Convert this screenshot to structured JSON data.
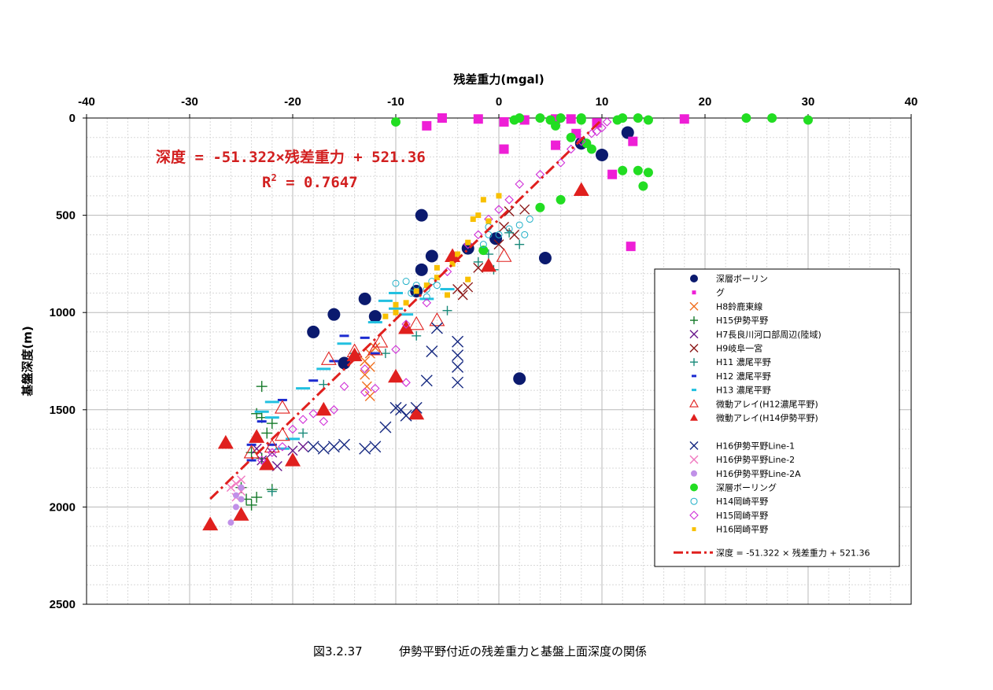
{
  "caption": {
    "number": "図3.2.37",
    "text": "伊勢平野付近の残差重力と基盤上面深度の関係"
  },
  "chart_data": {
    "type": "scatter",
    "title": "",
    "xlabel": "残差重力(mgal)",
    "ylabel": "基盤深度(m)",
    "x_axis_position": "top",
    "y_axis_inverted": true,
    "xlim": [
      -40,
      40
    ],
    "ylim": [
      0,
      2500
    ],
    "x_ticks": [
      -40,
      -30,
      -20,
      -10,
      0,
      10,
      20,
      30,
      40
    ],
    "y_ticks": [
      0,
      500,
      1000,
      1500,
      2000,
      2500
    ],
    "x_tick_labels": [
      "-40",
      "-30",
      "-20",
      "-10",
      "0",
      "10",
      "20",
      "30",
      "40"
    ],
    "y_tick_labels": [
      "0",
      "500",
      "1000",
      "1500",
      "2000",
      "2500"
    ],
    "grid": true,
    "legend_position": "right",
    "regression": {
      "label": "深度 = -51.322 × 残差重力 + 521.36",
      "equation_line1": "深度 = -51.322×残差重力 + 521.36",
      "r2_prefix": "R",
      "r2_sup": "2",
      "r2_suffix": " = 0.7647",
      "slope": -51.322,
      "intercept": 521.36,
      "x_range": [
        -28,
        10
      ],
      "color": "#e0201e"
    },
    "series": [
      {
        "name": "深層ボーリン",
        "marker": "circle",
        "color": "#0b1a6e",
        "size": 8,
        "points": [
          [
            -7.5,
            500
          ],
          [
            -6.5,
            710
          ],
          [
            -7.5,
            780
          ],
          [
            -8,
            890
          ],
          [
            -13,
            930
          ],
          [
            -12,
            1020
          ],
          [
            -16,
            1010
          ],
          [
            -18,
            1100
          ],
          [
            -15,
            1260
          ],
          [
            -3,
            670
          ],
          [
            -0.3,
            620
          ],
          [
            4.5,
            720
          ],
          [
            2,
            1340
          ],
          [
            10,
            190
          ],
          [
            8,
            130
          ],
          [
            12.5,
            75
          ]
        ]
      },
      {
        "name": "グ",
        "marker": "square",
        "color": "#ee1fd6",
        "size": 12,
        "points": [
          [
            -7,
            40
          ],
          [
            -5.5,
            0
          ],
          [
            -2,
            5
          ],
          [
            0.5,
            20
          ],
          [
            2.5,
            10
          ],
          [
            0.5,
            160
          ],
          [
            5.5,
            5
          ],
          [
            7,
            5
          ],
          [
            7.5,
            80
          ],
          [
            9.5,
            25
          ],
          [
            5.5,
            140
          ],
          [
            11,
            290
          ],
          [
            13,
            120
          ],
          [
            18,
            5
          ],
          [
            12.8,
            660
          ]
        ]
      },
      {
        "name": "H8鈴鹿東線",
        "marker": "x",
        "color": "#f07020",
        "size": 6,
        "points": [
          [
            -13,
            1250
          ],
          [
            -12.5,
            1280
          ],
          [
            -13,
            1320
          ],
          [
            -12.8,
            1380
          ],
          [
            -12.5,
            1430
          ],
          [
            -12,
            1180
          ],
          [
            -12.5,
            1210
          ]
        ]
      },
      {
        "name": "H15伊勢平野",
        "marker": "plus",
        "color": "#167a2a",
        "size": 7,
        "points": [
          [
            -23,
            1380
          ],
          [
            -23.5,
            1520
          ],
          [
            -23,
            1540
          ],
          [
            -22,
            1570
          ],
          [
            -22.5,
            1620
          ],
          [
            -24,
            1720
          ],
          [
            -23,
            1750
          ],
          [
            -25,
            1900
          ],
          [
            -24.5,
            1960
          ],
          [
            -24,
            1990
          ],
          [
            -23.5,
            1950
          ],
          [
            -22,
            1910
          ]
        ]
      },
      {
        "name": "H7長良川河口部周辺(陸域)",
        "marker": "x",
        "color": "#6a1a8c",
        "size": 6,
        "points": [
          [
            -23.5,
            1700
          ],
          [
            -21.5,
            1790
          ],
          [
            -20,
            1710
          ],
          [
            -19,
            1690
          ],
          [
            -23,
            1760
          ],
          [
            -22,
            1720
          ]
        ]
      },
      {
        "name": "H9岐阜一宮",
        "marker": "x",
        "color": "#8c1818",
        "size": 6,
        "points": [
          [
            1,
            480
          ],
          [
            2.5,
            470
          ],
          [
            1.5,
            600
          ],
          [
            0,
            650
          ],
          [
            -2,
            770
          ],
          [
            -4,
            880
          ],
          [
            -3.5,
            910
          ],
          [
            -3,
            870
          ],
          [
            0.5,
            560
          ]
        ]
      },
      {
        "name": "H11 濃尾平野",
        "marker": "plus",
        "color": "#1a8a7a",
        "size": 6,
        "points": [
          [
            2,
            650
          ],
          [
            1,
            590
          ],
          [
            -0.5,
            780
          ],
          [
            -1,
            700
          ],
          [
            -5,
            990
          ],
          [
            -8,
            1120
          ],
          [
            -11,
            1210
          ],
          [
            -14,
            1210
          ],
          [
            -17,
            1370
          ],
          [
            -19,
            1620
          ],
          [
            -22,
            1920
          ],
          [
            -2,
            740
          ]
        ]
      },
      {
        "name": "H12 濃尾平野",
        "marker": "dash",
        "color": "#1c2bd0",
        "size": 6,
        "points": [
          [
            -15,
            1120
          ],
          [
            -13,
            1130
          ],
          [
            -12,
            1210
          ],
          [
            -16,
            1250
          ],
          [
            -18,
            1350
          ],
          [
            -21,
            1450
          ],
          [
            -23,
            1560
          ],
          [
            -24,
            1680
          ],
          [
            -22,
            1680
          ],
          [
            -24,
            1760
          ]
        ]
      },
      {
        "name": "H13 濃尾平野",
        "marker": "dash",
        "color": "#22c0e0",
        "size": 9,
        "points": [
          [
            -10,
            900
          ],
          [
            -11,
            940
          ],
          [
            -10,
            980
          ],
          [
            -12,
            1050
          ],
          [
            -15,
            1160
          ],
          [
            -17,
            1290
          ],
          [
            -19,
            1390
          ],
          [
            -22,
            1460
          ],
          [
            -23,
            1510
          ],
          [
            -22,
            1540
          ],
          [
            -20,
            1650
          ],
          [
            -21,
            1700
          ],
          [
            -9,
            1010
          ],
          [
            -7,
            930
          ],
          [
            -5,
            880
          ]
        ]
      },
      {
        "name": "微動アレイ(H12濃尾平野)",
        "marker": "triangle-open",
        "color": "#e0201e",
        "size": 9,
        "points": [
          [
            -8,
            1060
          ],
          [
            -6,
            1040
          ],
          [
            -16.5,
            1240
          ],
          [
            -14,
            1200
          ],
          [
            -12,
            1190
          ],
          [
            -11.5,
            1150
          ],
          [
            -21,
            1490
          ],
          [
            -21,
            1630
          ],
          [
            -24,
            1720
          ],
          [
            0.5,
            710
          ],
          [
            -22,
            1690
          ]
        ]
      },
      {
        "name": "微動アレイ(H14伊勢平野)",
        "marker": "triangle",
        "color": "#e0201e",
        "size": 10,
        "points": [
          [
            -4.5,
            710
          ],
          [
            -1,
            760
          ],
          [
            -9,
            1080
          ],
          [
            -10,
            1330
          ],
          [
            -14,
            1220
          ],
          [
            -17,
            1500
          ],
          [
            -23.5,
            1640
          ],
          [
            -22.5,
            1780
          ],
          [
            -20,
            1760
          ],
          [
            -26.5,
            1670
          ],
          [
            -28,
            2090
          ],
          [
            -25,
            2040
          ],
          [
            -8,
            1520
          ],
          [
            8,
            370
          ]
        ]
      },
      {
        "name": "",
        "marker": "none",
        "color": "#ffffff",
        "size": 0,
        "points": []
      },
      {
        "name": "H16伊勢平野Line-1",
        "marker": "x",
        "color": "#152880",
        "size": 7,
        "points": [
          [
            -4,
            1150
          ],
          [
            -4,
            1220
          ],
          [
            -4,
            1280
          ],
          [
            -4,
            1360
          ],
          [
            -6.5,
            1200
          ],
          [
            -7,
            1350
          ],
          [
            -8,
            1490
          ],
          [
            -9,
            1530
          ],
          [
            -9.5,
            1500
          ],
          [
            -10,
            1490
          ],
          [
            -11,
            1590
          ],
          [
            -12,
            1690
          ],
          [
            -13,
            1700
          ],
          [
            -15,
            1680
          ],
          [
            -16,
            1690
          ],
          [
            -17,
            1700
          ],
          [
            -18,
            1690
          ],
          [
            -6,
            1080
          ]
        ]
      },
      {
        "name": "H16伊勢平野Line-2",
        "marker": "x",
        "color": "#f078c0",
        "size": 5,
        "points": [
          [
            -25.5,
            1880
          ],
          [
            -25,
            1920
          ],
          [
            -25.5,
            1950
          ],
          [
            -26,
            1900
          ],
          [
            -25,
            1860
          ]
        ]
      },
      {
        "name": "H16伊勢平野Line-2A",
        "marker": "circle",
        "color": "#c090e8",
        "size": 4,
        "points": [
          [
            -25.5,
            1940
          ],
          [
            -26,
            2080
          ],
          [
            -25,
            1900
          ],
          [
            -25.5,
            2000
          ],
          [
            -25,
            1960
          ]
        ]
      },
      {
        "name": "深層ボーリング",
        "marker": "circle",
        "color": "#22dd22",
        "size": 6,
        "points": [
          [
            -10,
            20
          ],
          [
            1.5,
            10
          ],
          [
            2,
            0
          ],
          [
            4,
            0
          ],
          [
            5,
            10
          ],
          [
            6,
            0
          ],
          [
            8,
            0
          ],
          [
            12,
            0
          ],
          [
            13.5,
            0
          ],
          [
            14.5,
            10
          ],
          [
            24,
            0
          ],
          [
            26.5,
            0
          ],
          [
            30,
            10
          ],
          [
            7,
            100
          ],
          [
            8.5,
            130
          ],
          [
            9,
            160
          ],
          [
            12,
            270
          ],
          [
            13.5,
            270
          ],
          [
            14.5,
            280
          ],
          [
            14,
            350
          ],
          [
            4,
            460
          ],
          [
            6,
            420
          ],
          [
            -1.5,
            680
          ],
          [
            11.5,
            10
          ],
          [
            8,
            10
          ],
          [
            5.5,
            40
          ]
        ]
      },
      {
        "name": "H14岡崎平野",
        "marker": "circle-open",
        "color": "#20b0c8",
        "size": 4,
        "points": [
          [
            3,
            520
          ],
          [
            2,
            550
          ],
          [
            1,
            570
          ],
          [
            -1,
            560
          ],
          [
            -9,
            840
          ],
          [
            -8,
            860
          ],
          [
            -7,
            880
          ],
          [
            -8.5,
            900
          ],
          [
            -7,
            920
          ],
          [
            -6,
            860
          ],
          [
            -6.5,
            840
          ],
          [
            -10,
            850
          ],
          [
            -1,
            600
          ],
          [
            -1.5,
            650
          ],
          [
            0,
            600
          ],
          [
            2.5,
            600
          ]
        ]
      },
      {
        "name": "H15岡崎平野",
        "marker": "diamond-open",
        "color": "#d030d8",
        "size": 5,
        "points": [
          [
            -2,
            600
          ],
          [
            -3,
            650
          ],
          [
            -1,
            520
          ],
          [
            0,
            470
          ],
          [
            1,
            420
          ],
          [
            2,
            340
          ],
          [
            4,
            290
          ],
          [
            6,
            230
          ],
          [
            7,
            160
          ],
          [
            8,
            120
          ],
          [
            9,
            80
          ],
          [
            10,
            50
          ],
          [
            10.5,
            20
          ],
          [
            -5,
            790
          ],
          [
            -7,
            950
          ],
          [
            -9,
            1060
          ],
          [
            -10,
            1190
          ],
          [
            -13,
            1290
          ],
          [
            -13,
            1410
          ],
          [
            -12,
            1390
          ],
          [
            -15,
            1380
          ],
          [
            -16,
            1500
          ],
          [
            -17,
            1560
          ],
          [
            -18,
            1520
          ],
          [
            -19,
            1550
          ],
          [
            -20,
            1600
          ],
          [
            -21,
            1690
          ],
          [
            -22,
            1720
          ],
          [
            -23,
            1760
          ],
          [
            -9,
            1360
          ],
          [
            9.5,
            70
          ]
        ]
      },
      {
        "name": "H16岡崎平野",
        "marker": "square",
        "color": "#f8c000",
        "size": 7,
        "points": [
          [
            -2.5,
            520
          ],
          [
            -2,
            500
          ],
          [
            -1.5,
            420
          ],
          [
            0,
            400
          ],
          [
            -1,
            530
          ],
          [
            -3,
            640
          ],
          [
            -4,
            700
          ],
          [
            -6,
            770
          ],
          [
            -6,
            820
          ],
          [
            -7,
            860
          ],
          [
            -8,
            890
          ],
          [
            -5,
            910
          ],
          [
            -9,
            950
          ],
          [
            -10,
            960
          ],
          [
            -10,
            1000
          ],
          [
            -11,
            1020
          ],
          [
            -3,
            830
          ],
          [
            -4.5,
            750
          ]
        ]
      }
    ]
  }
}
